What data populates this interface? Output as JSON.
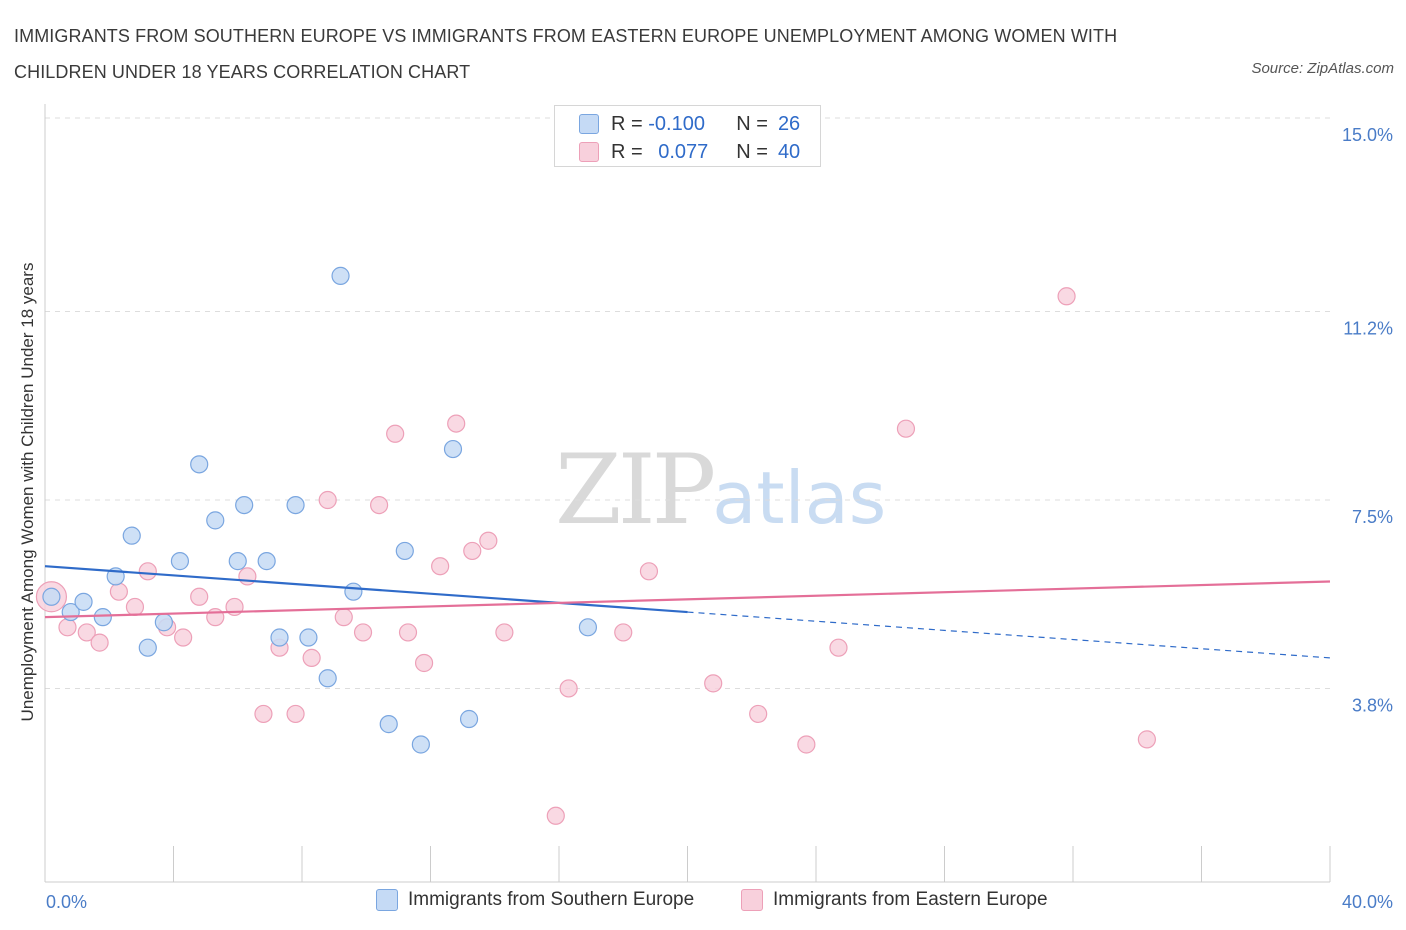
{
  "title": "IMMIGRANTS FROM SOUTHERN EUROPE VS IMMIGRANTS FROM EASTERN EUROPE UNEMPLOYMENT AMONG WOMEN WITH CHILDREN UNDER 18 YEARS CORRELATION CHART",
  "source": "Source: ZipAtlas.com",
  "watermark": {
    "zip": "ZIP",
    "atlas": "atlas"
  },
  "legend": {
    "r_label": "R =",
    "n_label": "N =",
    "rows": [
      {
        "r": "-0.100",
        "n": "26"
      },
      {
        "r": "0.077",
        "n": "40"
      }
    ]
  },
  "bottom_legend": {
    "series1": "Immigrants from Southern Europe",
    "series2": "Immigrants from Eastern Europe"
  },
  "colors": {
    "series1_fill": "#c5daf5",
    "series1_stroke": "#7aa6e0",
    "series1_line": "#2f6bc9",
    "series2_fill": "#f8d0dc",
    "series2_stroke": "#eda0b8",
    "series2_line": "#e46f98",
    "grid": "#dddddd",
    "tick_text": "#4a7cc7"
  },
  "chart_data": {
    "type": "scatter",
    "title": "IMMIGRANTS FROM SOUTHERN EUROPE VS IMMIGRANTS FROM EASTERN EUROPE UNEMPLOYMENT AMONG WOMEN WITH CHILDREN UNDER 18 YEARS CORRELATION CHART",
    "xlabel": "",
    "ylabel": "Unemployment Among Women with Children Under 18 years",
    "xlim": [
      0,
      40
    ],
    "ylim": [
      0,
      15
    ],
    "x_tick_labels": [
      "0.0%",
      "40.0%"
    ],
    "y_ticks": [
      3.8,
      7.5,
      11.2,
      15.0
    ],
    "y_tick_labels": [
      "3.8%",
      "7.5%",
      "11.2%",
      "15.0%"
    ],
    "grid": true,
    "legend_position": "top-center",
    "series": [
      {
        "name": "Immigrants from Southern Europe",
        "R": -0.1,
        "N": 26,
        "trend": {
          "x0": 0,
          "y0": 6.2,
          "x1": 20,
          "y1": 5.3,
          "dashed_to_x": 40,
          "dashed_to_y": 4.4
        },
        "points": [
          [
            0.2,
            5.6
          ],
          [
            0.8,
            5.3
          ],
          [
            1.2,
            5.5
          ],
          [
            1.8,
            5.2
          ],
          [
            2.2,
            6.0
          ],
          [
            2.7,
            6.8
          ],
          [
            3.2,
            4.6
          ],
          [
            3.7,
            5.1
          ],
          [
            4.2,
            6.3
          ],
          [
            4.8,
            8.2
          ],
          [
            5.3,
            7.1
          ],
          [
            6.0,
            6.3
          ],
          [
            6.2,
            7.4
          ],
          [
            6.9,
            6.3
          ],
          [
            7.3,
            4.8
          ],
          [
            7.8,
            7.4
          ],
          [
            8.2,
            4.8
          ],
          [
            8.8,
            4.0
          ],
          [
            9.2,
            11.9
          ],
          [
            9.6,
            5.7
          ],
          [
            10.7,
            3.1
          ],
          [
            11.2,
            6.5
          ],
          [
            11.7,
            2.7
          ],
          [
            12.7,
            8.5
          ],
          [
            13.2,
            3.2
          ],
          [
            16.9,
            5.0
          ]
        ]
      },
      {
        "name": "Immigrants from Eastern Europe",
        "R": 0.077,
        "N": 40,
        "trend": {
          "x0": 0,
          "y0": 5.2,
          "x1": 40,
          "y1": 5.9
        },
        "points": [
          [
            0.2,
            5.6
          ],
          [
            0.7,
            5.0
          ],
          [
            1.3,
            4.9
          ],
          [
            1.7,
            4.7
          ],
          [
            2.3,
            5.7
          ],
          [
            2.8,
            5.4
          ],
          [
            3.2,
            6.1
          ],
          [
            3.8,
            5.0
          ],
          [
            4.3,
            4.8
          ],
          [
            4.8,
            5.6
          ],
          [
            5.3,
            5.2
          ],
          [
            5.9,
            5.4
          ],
          [
            6.3,
            6.0
          ],
          [
            6.8,
            3.3
          ],
          [
            7.3,
            4.6
          ],
          [
            7.8,
            3.3
          ],
          [
            8.3,
            4.4
          ],
          [
            8.8,
            7.5
          ],
          [
            9.3,
            5.2
          ],
          [
            9.9,
            4.9
          ],
          [
            10.4,
            7.4
          ],
          [
            10.9,
            8.8
          ],
          [
            11.3,
            4.9
          ],
          [
            11.8,
            4.3
          ],
          [
            12.3,
            6.2
          ],
          [
            12.8,
            9.0
          ],
          [
            13.3,
            6.5
          ],
          [
            13.8,
            6.7
          ],
          [
            14.3,
            4.9
          ],
          [
            15.9,
            1.3
          ],
          [
            16.3,
            3.8
          ],
          [
            18.0,
            4.9
          ],
          [
            18.8,
            6.1
          ],
          [
            20.8,
            3.9
          ],
          [
            22.2,
            3.3
          ],
          [
            23.7,
            2.7
          ],
          [
            24.7,
            4.6
          ],
          [
            26.8,
            8.9
          ],
          [
            31.8,
            11.5
          ],
          [
            34.3,
            2.8
          ]
        ]
      }
    ]
  }
}
